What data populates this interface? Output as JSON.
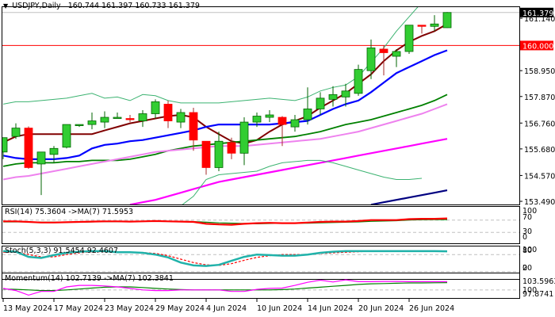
{
  "header": {
    "symbol": "USDJPY,Daily",
    "ohlc": "160.744 161.397 160.733 161.379",
    "collapse_icon": "triangle-down-icon"
  },
  "price_axis": {
    "labels": [
      "161.140",
      "158.950",
      "157.870",
      "156.760",
      "155.680",
      "154.570",
      "153.490"
    ],
    "current_price_tag": "161.379",
    "level_tag": "160.000"
  },
  "colors": {
    "bull": "#32cd32",
    "bear": "#ff0000",
    "ma_fast": "#800000",
    "ma_mid": "#0000ff",
    "ma_slow": "#008000",
    "ma_long": "#ee82ee",
    "ma_200": "#ff00ff",
    "ma_extra": "#000080",
    "bands": "#3cb371",
    "level_line": "#ff0000",
    "rsi": "#ff0000",
    "rsi_ma": "#008000",
    "stoch_main": "#20b2aa",
    "stoch_signal": "#ff0000",
    "momentum": "#ff00ff",
    "momentum_ma": "#008000"
  },
  "indicators": {
    "rsi_label": "RSI(14) 75.3604  ->MA(7) 71.5953",
    "rsi_axis": [
      "100",
      "70",
      "30",
      "0"
    ],
    "stoch_label": "Stoch(5,3,3) 91.5454 92.4607",
    "stoch_axis": [
      "100",
      "80",
      "20",
      "0"
    ],
    "momentum_label": "Momentum(14) 102.7139  ->MA(7) 102.3841",
    "momentum_axis": [
      "103.5963",
      "100",
      "97.8741"
    ]
  },
  "time_axis": {
    "labels": [
      "13 May 2024",
      "17 May 2024",
      "23 May 2024",
      "29 May 2024",
      "4 Jun 2024",
      "10 Jun 2024",
      "14 Jun 2024",
      "20 Jun 2024",
      "26 Jun 2024"
    ]
  },
  "chart_data": {
    "type": "candlestick",
    "title": "USDJPY,Daily 160.744 161.397 160.733 161.379",
    "xlabel": "",
    "ylabel": "",
    "ylim": [
      153.3,
      161.65
    ],
    "yticks": [
      161.14,
      158.95,
      157.87,
      156.76,
      155.68,
      154.57,
      153.49
    ],
    "horizontal_levels": [
      160.0,
      161.379
    ],
    "x_labels": [
      "13 May 2024",
      "17 May 2024",
      "23 May 2024",
      "29 May 2024",
      "4 Jun 2024",
      "10 Jun 2024",
      "14 Jun 2024",
      "20 Jun 2024",
      "26 Jun 2024"
    ],
    "candles": [
      {
        "o": 155.55,
        "h": 156.1,
        "l": 155.25,
        "c": 156.15
      },
      {
        "o": 156.2,
        "h": 156.75,
        "l": 156.1,
        "c": 156.55
      },
      {
        "o": 156.55,
        "h": 156.62,
        "l": 154.85,
        "c": 154.9
      },
      {
        "o": 155.05,
        "h": 155.2,
        "l": 153.75,
        "c": 155.55
      },
      {
        "o": 155.45,
        "h": 155.8,
        "l": 155.1,
        "c": 155.7
      },
      {
        "o": 155.75,
        "h": 156.7,
        "l": 155.7,
        "c": 156.7
      },
      {
        "o": 156.7,
        "h": 156.7,
        "l": 156.6,
        "c": 156.7
      },
      {
        "o": 156.7,
        "h": 157.2,
        "l": 156.5,
        "c": 156.85
      },
      {
        "o": 156.8,
        "h": 157.25,
        "l": 156.55,
        "c": 157.0
      },
      {
        "o": 156.95,
        "h": 157.2,
        "l": 156.95,
        "c": 157.0
      },
      {
        "o": 156.95,
        "h": 157.1,
        "l": 156.8,
        "c": 156.9
      },
      {
        "o": 156.85,
        "h": 157.3,
        "l": 156.6,
        "c": 157.15
      },
      {
        "o": 157.15,
        "h": 157.75,
        "l": 156.95,
        "c": 157.65
      },
      {
        "o": 157.55,
        "h": 157.7,
        "l": 156.55,
        "c": 156.85
      },
      {
        "o": 156.8,
        "h": 157.35,
        "l": 156.55,
        "c": 157.2
      },
      {
        "o": 157.2,
        "h": 157.4,
        "l": 155.6,
        "c": 156.05
      },
      {
        "o": 156.0,
        "h": 156.0,
        "l": 154.6,
        "c": 154.9
      },
      {
        "o": 154.9,
        "h": 156.4,
        "l": 154.75,
        "c": 156.0
      },
      {
        "o": 155.95,
        "h": 156.15,
        "l": 155.25,
        "c": 155.5
      },
      {
        "o": 155.5,
        "h": 157.0,
        "l": 155.0,
        "c": 156.8
      },
      {
        "o": 156.8,
        "h": 157.2,
        "l": 156.6,
        "c": 157.05
      },
      {
        "o": 157.0,
        "h": 157.3,
        "l": 156.8,
        "c": 157.1
      },
      {
        "o": 157.0,
        "h": 157.05,
        "l": 155.8,
        "c": 156.7
      },
      {
        "o": 156.6,
        "h": 157.1,
        "l": 156.4,
        "c": 156.9
      },
      {
        "o": 156.9,
        "h": 158.25,
        "l": 156.7,
        "c": 157.35
      },
      {
        "o": 157.35,
        "h": 158.05,
        "l": 157.1,
        "c": 157.8
      },
      {
        "o": 157.75,
        "h": 158.3,
        "l": 157.45,
        "c": 157.95
      },
      {
        "o": 157.85,
        "h": 158.4,
        "l": 157.45,
        "c": 158.1
      },
      {
        "o": 158.0,
        "h": 159.2,
        "l": 157.9,
        "c": 159.0
      },
      {
        "o": 158.95,
        "h": 160.25,
        "l": 158.6,
        "c": 159.9
      },
      {
        "o": 159.85,
        "h": 160.0,
        "l": 158.75,
        "c": 159.7
      },
      {
        "o": 159.55,
        "h": 159.85,
        "l": 159.1,
        "c": 159.75
      },
      {
        "o": 159.75,
        "h": 160.85,
        "l": 159.65,
        "c": 160.85
      },
      {
        "o": 160.85,
        "h": 160.85,
        "l": 160.5,
        "c": 160.8
      },
      {
        "o": 160.8,
        "h": 161.27,
        "l": 160.6,
        "c": 160.9
      },
      {
        "o": 160.744,
        "h": 161.397,
        "l": 160.733,
        "c": 161.379
      }
    ],
    "series": [
      {
        "name": "MA fast (dark red)",
        "values": [
          155.95,
          156.2,
          156.3,
          156.3,
          156.3,
          156.3,
          156.3,
          156.3,
          156.45,
          156.6,
          156.75,
          156.85,
          156.95,
          157.05,
          157.1,
          157.0,
          156.6,
          156.3,
          156.0,
          155.9,
          156.05,
          156.4,
          156.7,
          156.85,
          157.05,
          157.4,
          157.7,
          158.0,
          158.4,
          158.8,
          159.35,
          159.8,
          160.15,
          160.4,
          160.6,
          160.9
        ]
      },
      {
        "name": "MA mid (blue)",
        "values": [
          155.4,
          155.3,
          155.25,
          155.25,
          155.25,
          155.3,
          155.4,
          155.7,
          155.85,
          155.9,
          156.0,
          156.05,
          156.15,
          156.25,
          156.35,
          156.45,
          156.6,
          156.7,
          156.7,
          156.7,
          156.7,
          156.7,
          156.75,
          156.8,
          156.85,
          157.1,
          157.35,
          157.55,
          157.7,
          158.05,
          158.45,
          158.85,
          159.1,
          159.35,
          159.6,
          159.8
        ]
      },
      {
        "name": "MA slow (green)",
        "values": [
          154.95,
          155.05,
          155.1,
          155.1,
          155.1,
          155.15,
          155.15,
          155.2,
          155.2,
          155.2,
          155.25,
          155.35,
          155.45,
          155.6,
          155.7,
          155.8,
          155.85,
          155.9,
          155.95,
          156.0,
          156.05,
          156.1,
          156.15,
          156.2,
          156.3,
          156.4,
          156.55,
          156.7,
          156.8,
          156.9,
          157.05,
          157.2,
          157.35,
          157.5,
          157.7,
          157.95
        ]
      },
      {
        "name": "MA long (violet)",
        "values": [
          154.4,
          154.5,
          154.55,
          154.65,
          154.75,
          154.85,
          154.95,
          155.05,
          155.15,
          155.25,
          155.35,
          155.45,
          155.55,
          155.6,
          155.65,
          155.7,
          155.75,
          155.8,
          155.8,
          155.8,
          155.85,
          155.9,
          155.95,
          156.0,
          156.05,
          156.1,
          156.2,
          156.3,
          156.4,
          156.55,
          156.7,
          156.85,
          157.0,
          157.15,
          157.35,
          157.55
        ]
      },
      {
        "name": "MA 200 (magenta)",
        "values": [
          null,
          null,
          null,
          null,
          null,
          null,
          null,
          null,
          null,
          null,
          153.35,
          153.45,
          153.55,
          153.7,
          153.85,
          154.0,
          154.15,
          154.3,
          154.4,
          154.5,
          154.6,
          154.7,
          154.8,
          154.9,
          155.0,
          155.1,
          155.2,
          155.3,
          155.4,
          155.5,
          155.6,
          155.7,
          155.8,
          155.9,
          156.0,
          156.1
        ]
      },
      {
        "name": "Bollinger upper",
        "values": [
          157.55,
          157.65,
          157.65,
          157.7,
          157.75,
          157.8,
          157.9,
          158.0,
          157.8,
          157.85,
          157.7,
          157.95,
          157.9,
          157.7,
          157.6,
          157.6,
          157.6,
          157.6,
          157.65,
          157.7,
          157.75,
          157.8,
          157.75,
          157.7,
          157.85,
          158.1,
          158.25,
          158.35,
          158.7,
          159.3,
          159.9,
          160.6,
          161.2,
          161.8,
          162.2,
          162.4
        ]
      },
      {
        "name": "Bollinger lower",
        "values": [
          null,
          null,
          null,
          null,
          null,
          null,
          null,
          null,
          null,
          null,
          null,
          null,
          null,
          null,
          153.3,
          153.7,
          154.4,
          154.6,
          154.65,
          154.7,
          154.75,
          154.95,
          155.1,
          155.15,
          155.2,
          155.2,
          155.1,
          154.95,
          154.8,
          154.65,
          154.5,
          154.4,
          154.4,
          154.45,
          null,
          null
        ]
      },
      {
        "name": "MA extra (navy)",
        "values": [
          null,
          null,
          null,
          null,
          null,
          null,
          null,
          null,
          null,
          null,
          null,
          null,
          null,
          null,
          null,
          null,
          null,
          null,
          null,
          null,
          null,
          null,
          null,
          null,
          null,
          null,
          null,
          null,
          null,
          153.35,
          153.45,
          153.55,
          153.65,
          153.75,
          153.85,
          153.95
        ]
      }
    ],
    "subcharts": [
      {
        "name": "RSI(14)",
        "value": 75.3604,
        "ma7": 71.5953,
        "range": [
          0,
          100
        ],
        "levels": [
          70,
          30
        ]
      },
      {
        "name": "Stoch(5,3,3)",
        "main": 91.5454,
        "signal": 92.4607,
        "range": [
          0,
          100
        ],
        "levels": [
          80,
          20
        ]
      },
      {
        "name": "Momentum(14)",
        "value": 102.7139,
        "ma7": 102.3841,
        "range": [
          97.8741,
          103.5963
        ],
        "levels": [
          100
        ]
      }
    ]
  }
}
